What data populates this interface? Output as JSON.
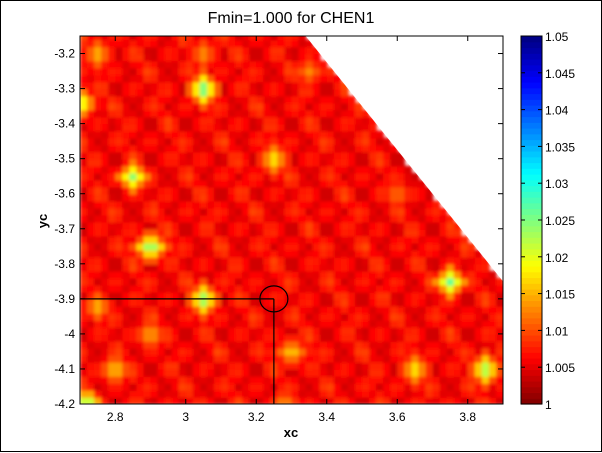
{
  "chart_data": {
    "type": "heatmap",
    "title": "Fmin=1.000 for CHEN1",
    "xlabel": "xc",
    "ylabel": "yc",
    "xlim": [
      2.7,
      3.9
    ],
    "ylim": [
      -4.2,
      -3.15
    ],
    "xticks": [
      2.8,
      3,
      3.2,
      3.4,
      3.6,
      3.8
    ],
    "xtick_labels": [
      "2.8",
      "3",
      "3.2",
      "3.4",
      "3.6",
      "3.8"
    ],
    "yticks": [
      -3.2,
      -3.3,
      -3.4,
      -3.5,
      -3.6,
      -3.7,
      -3.8,
      -3.9,
      -4,
      -4.1,
      -4.2
    ],
    "ytick_labels": [
      "-3.2",
      "-3.3",
      "-3.4",
      "-3.5",
      "-3.6",
      "-3.7",
      "-3.8",
      "-3.9",
      "-4",
      "-4.1",
      "-4.2"
    ],
    "colorbar": {
      "range": [
        1,
        1.05
      ],
      "colormap": "jet-reversed",
      "ticks": [
        1,
        1.005,
        1.01,
        1.015,
        1.02,
        1.025,
        1.03,
        1.035,
        1.04,
        1.045,
        1.05
      ],
      "tick_labels": [
        "1",
        "1.005",
        "1.01",
        "1.015",
        "1.02",
        "1.025",
        "1.03",
        "1.035",
        "1.04",
        "1.045",
        "1.05"
      ]
    },
    "base_value": 1.004,
    "stripe_amplitude": 0.005,
    "undefined_region_boundary": [
      [
        3.34,
        -3.15
      ],
      [
        3.9,
        -3.85
      ]
    ],
    "local_maxima": [
      {
        "x": 2.75,
        "y": -3.2,
        "v": 1.016
      },
      {
        "x": 3.05,
        "y": -3.2,
        "v": 1.014
      },
      {
        "x": 3.05,
        "y": -3.3,
        "v": 1.028
      },
      {
        "x": 2.7,
        "y": -3.34,
        "v": 1.024
      },
      {
        "x": 3.35,
        "y": -3.25,
        "v": 1.013
      },
      {
        "x": 3.25,
        "y": -3.5,
        "v": 1.019
      },
      {
        "x": 2.85,
        "y": -3.55,
        "v": 1.024
      },
      {
        "x": 3.6,
        "y": -3.6,
        "v": 1.013
      },
      {
        "x": 2.9,
        "y": -3.75,
        "v": 1.026
      },
      {
        "x": 3.75,
        "y": -3.85,
        "v": 1.026
      },
      {
        "x": 3.05,
        "y": -3.9,
        "v": 1.026
      },
      {
        "x": 2.75,
        "y": -3.92,
        "v": 1.016
      },
      {
        "x": 2.9,
        "y": -4.0,
        "v": 1.016
      },
      {
        "x": 3.3,
        "y": -4.05,
        "v": 1.017
      },
      {
        "x": 3.65,
        "y": -4.1,
        "v": 1.019
      },
      {
        "x": 3.85,
        "y": -4.1,
        "v": 1.025
      },
      {
        "x": 2.8,
        "y": -4.1,
        "v": 1.018
      },
      {
        "x": 2.72,
        "y": -4.2,
        "v": 1.028
      },
      {
        "x": 3.28,
        "y": -4.2,
        "v": 1.015
      }
    ],
    "marker": {
      "x": 3.25,
      "y": -3.9
    }
  },
  "colors": {
    "axis": "#000000",
    "background": "#ffffff"
  }
}
